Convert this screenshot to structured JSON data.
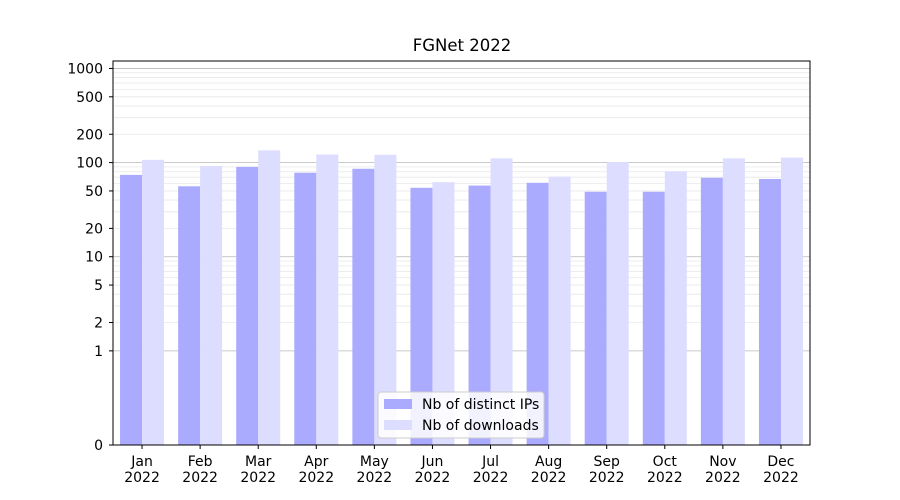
{
  "chart_data": {
    "type": "bar",
    "title": "FGNet 2022",
    "xlabel": "",
    "ylabel": "",
    "yscale": "log",
    "ylim": [
      0,
      1200
    ],
    "yticks": [
      0,
      1,
      2,
      5,
      10,
      20,
      50,
      100,
      200,
      500,
      1000
    ],
    "ytick_labels": [
      "0",
      "1",
      "2",
      "5",
      "10",
      "20",
      "50",
      "100",
      "200",
      "500",
      "1000"
    ],
    "categories": [
      [
        "Jan",
        "2022"
      ],
      [
        "Feb",
        "2022"
      ],
      [
        "Mar",
        "2022"
      ],
      [
        "Apr",
        "2022"
      ],
      [
        "May",
        "2022"
      ],
      [
        "Jun",
        "2022"
      ],
      [
        "Jul",
        "2022"
      ],
      [
        "Aug",
        "2022"
      ],
      [
        "Sep",
        "2022"
      ],
      [
        "Oct",
        "2022"
      ],
      [
        "Nov",
        "2022"
      ],
      [
        "Dec",
        "2022"
      ]
    ],
    "series": [
      {
        "name": "Nb of distinct IPs",
        "color": "#aaaaff",
        "values": [
          74,
          56,
          90,
          78,
          86,
          54,
          57,
          61,
          49,
          49,
          69,
          67
        ]
      },
      {
        "name": "Nb of downloads",
        "color": "#ddddff",
        "values": [
          107,
          92,
          135,
          122,
          121,
          62,
          111,
          71,
          101,
          81,
          111,
          113
        ]
      }
    ],
    "grid": true,
    "legend_position": "bottom-center"
  }
}
